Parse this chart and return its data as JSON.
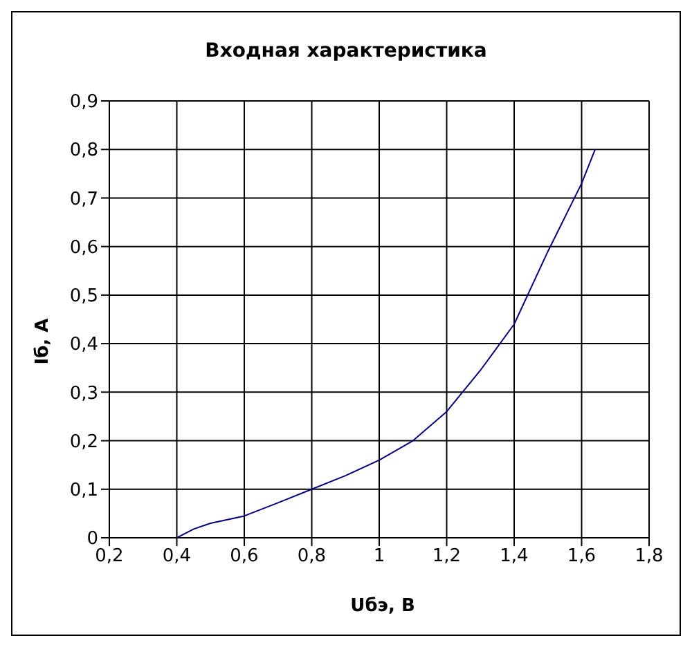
{
  "chart_data": {
    "type": "line",
    "title": "Входная характеристика",
    "xlabel": "Uбэ, В",
    "ylabel": "Iб, А",
    "x": [
      0.4,
      0.45,
      0.5,
      0.6,
      0.7,
      0.8,
      0.9,
      1.0,
      1.1,
      1.2,
      1.3,
      1.4,
      1.5,
      1.6,
      1.64
    ],
    "series": [
      {
        "color": "#000080",
        "values": [
          0,
          0.018,
          0.03,
          0.045,
          0.072,
          0.1,
          0.128,
          0.16,
          0.2,
          0.26,
          0.345,
          0.44,
          0.59,
          0.73,
          0.8
        ]
      }
    ],
    "xlim": [
      0.2,
      1.8
    ],
    "xticks": [
      {
        "value": 0.2,
        "label": "0,2"
      },
      {
        "value": 0.4,
        "label": "0,4"
      },
      {
        "value": 0.6,
        "label": "0,6"
      },
      {
        "value": 0.8,
        "label": "0,8"
      },
      {
        "value": 1,
        "label": "1"
      },
      {
        "value": 1.2,
        "label": "1,2"
      },
      {
        "value": 1.4,
        "label": "1,4"
      },
      {
        "value": 1.6,
        "label": "1,6"
      },
      {
        "value": 1.8,
        "label": "1,8"
      }
    ],
    "ylim": [
      0,
      0.9
    ],
    "yticks": [
      {
        "value": 0,
        "label": "0"
      },
      {
        "value": 0.1,
        "label": "0,1"
      },
      {
        "value": 0.2,
        "label": "0,2"
      },
      {
        "value": 0.3,
        "label": "0,3"
      },
      {
        "value": 0.4,
        "label": "0,4"
      },
      {
        "value": 0.5,
        "label": "0,5"
      },
      {
        "value": 0.6,
        "label": "0,6"
      },
      {
        "value": 0.7,
        "label": "0,7"
      },
      {
        "value": 0.8,
        "label": "0,8"
      },
      {
        "value": 0.9,
        "label": "0,9"
      }
    ],
    "grid": true,
    "marker": "none",
    "line_style": "solid",
    "legend": false
  }
}
